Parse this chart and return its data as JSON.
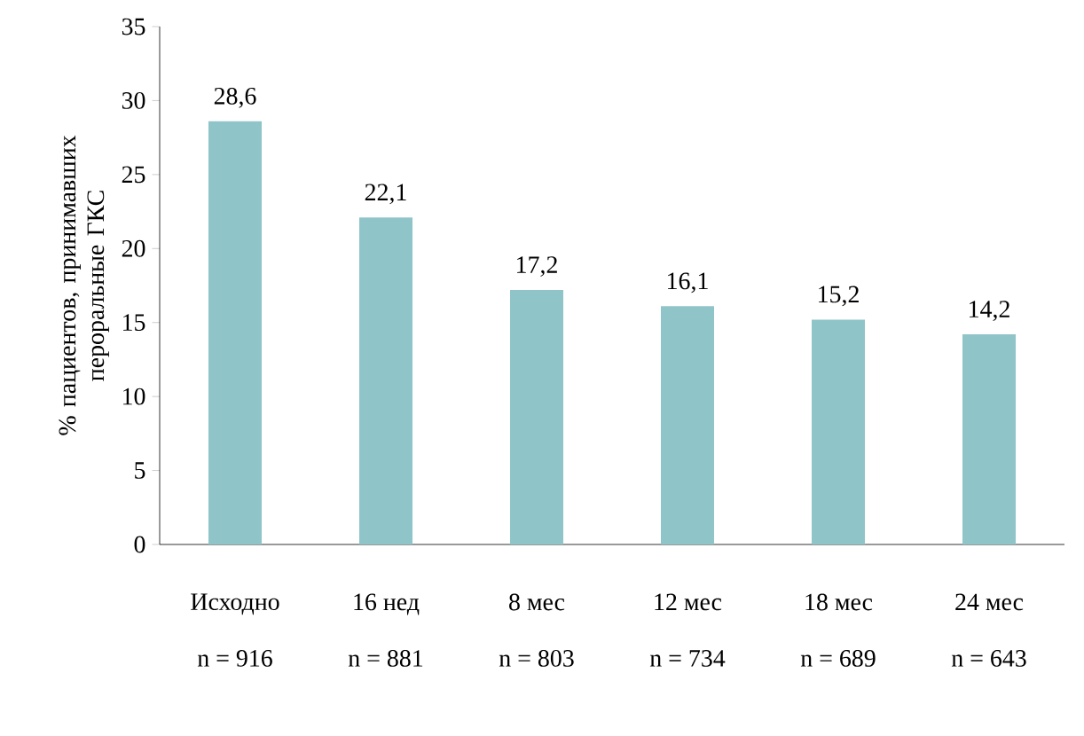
{
  "chart_data": {
    "type": "bar",
    "ylabel": "% пациентов, принимавших пероральные ГКС",
    "categories": [
      "Исходно",
      "16 нед",
      "8 мес",
      "12 мес",
      "18 мес",
      "24 мес"
    ],
    "values": [
      28.6,
      22.1,
      17.2,
      16.1,
      15.2,
      14.2
    ],
    "value_labels": [
      "28,6",
      "22,1",
      "17,2",
      "16,1",
      "15,2",
      "14,2"
    ],
    "color": "#8fc4c8",
    "ylim": [
      0,
      35
    ],
    "yticks": [
      0,
      5,
      10,
      15,
      20,
      25,
      30,
      35
    ],
    "grid": false,
    "annotations": [
      "n = 916",
      "n = 881",
      "n = 803",
      "n = 734",
      "n = 689",
      "n = 643"
    ]
  }
}
